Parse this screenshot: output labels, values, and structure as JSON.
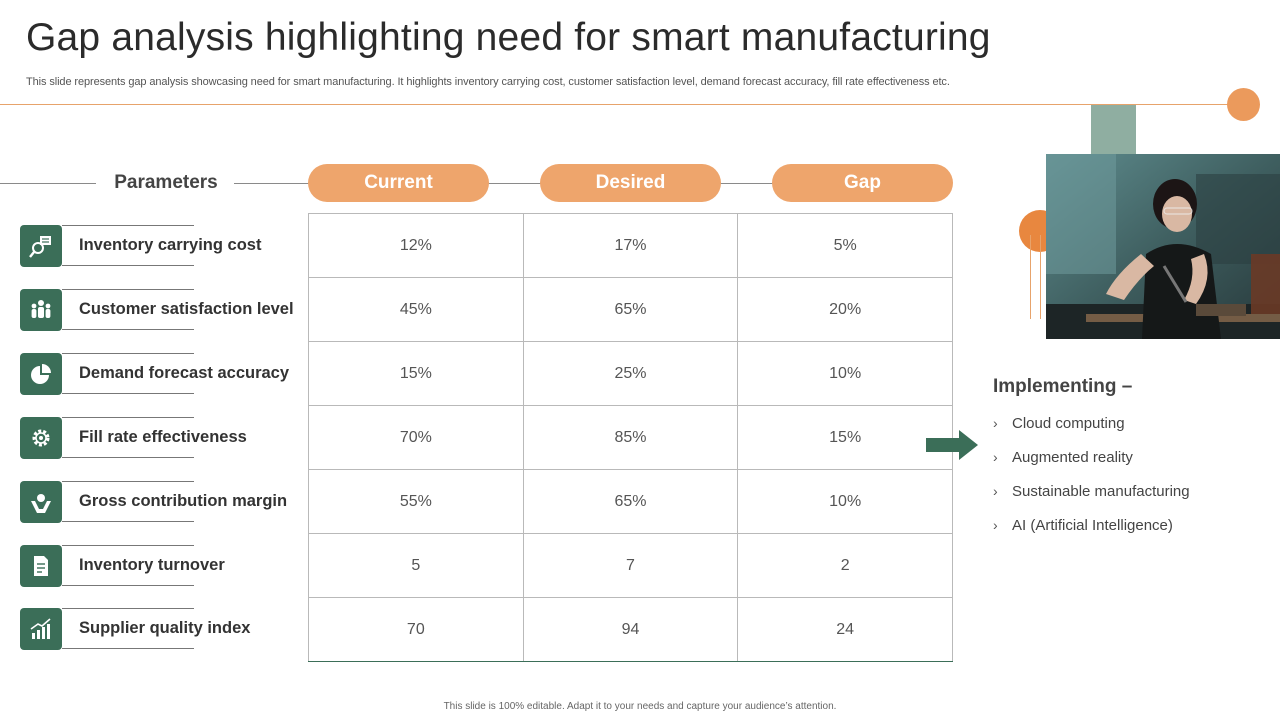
{
  "title": "Gap analysis highlighting need for smart manufacturing",
  "subtitle": "This slide represents gap analysis showcasing need for smart manufacturing. It highlights inventory carrying cost, customer satisfaction level, demand forecast accuracy, fill rate effectiveness etc.",
  "table": {
    "param_header": "Parameters",
    "columns": [
      "Current",
      "Desired",
      "Gap"
    ],
    "rows": [
      {
        "label": "Inventory carrying cost",
        "icon": "inventory-cost-icon",
        "current": "12%",
        "desired": "17%",
        "gap": "5%"
      },
      {
        "label": "Customer satisfaction level",
        "icon": "customer-group-icon",
        "current": "45%",
        "desired": "65%",
        "gap": "20%"
      },
      {
        "label": "Demand forecast accuracy",
        "icon": "pie-chart-icon",
        "current": "15%",
        "desired": "25%",
        "gap": "10%"
      },
      {
        "label": "Fill rate effectiveness",
        "icon": "gear-icon",
        "current": "70%",
        "desired": "85%",
        "gap": "15%"
      },
      {
        "label": "Gross contribution margin",
        "icon": "hand-holding-icon",
        "current": "55%",
        "desired": "65%",
        "gap": "10%"
      },
      {
        "label": "Inventory turnover",
        "icon": "document-icon",
        "current": "5",
        "desired": "7",
        "gap": "2"
      },
      {
        "label": "Supplier quality index",
        "icon": "growth-chart-icon",
        "current": "70",
        "desired": "94",
        "gap": "24"
      }
    ]
  },
  "implementing": {
    "title": "Implementing –",
    "items": [
      "Cloud computing",
      "Augmented reality",
      "Sustainable manufacturing",
      "AI (Artificial Intelligence)"
    ]
  },
  "footer": "This slide is 100% editable. Adapt it to your needs and capture your audience’s attention.",
  "colors": {
    "accent": "#eea56c",
    "green": "#3b6e58",
    "line": "#e7a36b"
  }
}
